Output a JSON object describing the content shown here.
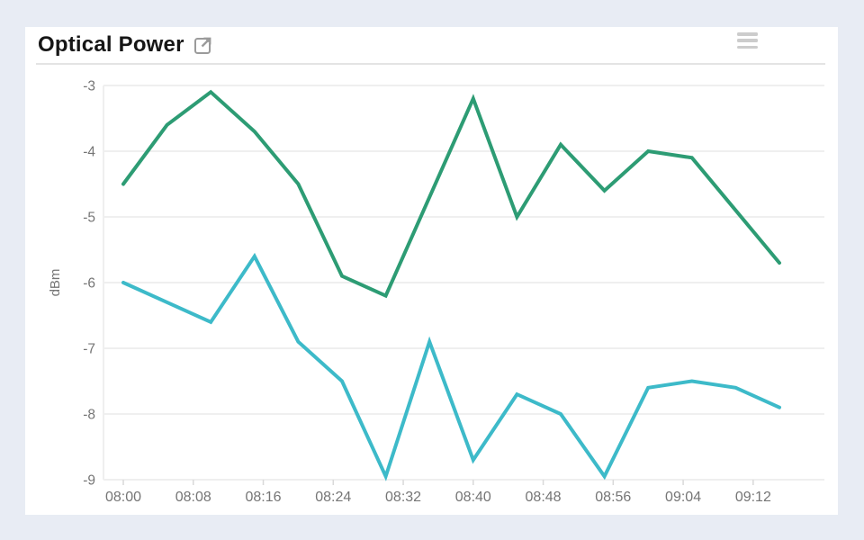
{
  "panel": {
    "title": "Optical Power",
    "external_link_icon": "external-link-icon",
    "menu_icon": "menu-icon"
  },
  "colors": {
    "page_background": "#e8ecf4",
    "card_background": "#ffffff",
    "grid": "#efefef",
    "tick_mark": "#d9d9d9",
    "axis_text": "#757575",
    "icon_gray": "#9b9b9b",
    "series1": "#2d9c74",
    "series2": "#3dbac9"
  },
  "chart_data": {
    "type": "line",
    "title": "Optical Power",
    "xlabel": "",
    "ylabel": "dBm",
    "ylim": [
      -9,
      -3
    ],
    "grid": true,
    "legend_position": "none",
    "x_interval_minutes": 5,
    "x": [
      "08:00",
      "08:05",
      "08:10",
      "08:15",
      "08:20",
      "08:25",
      "08:30",
      "08:35",
      "08:40",
      "08:45",
      "08:50",
      "08:55",
      "09:00",
      "09:05",
      "09:10",
      "09:15"
    ],
    "x_tick_labels": [
      "08:00",
      "08:08",
      "08:16",
      "08:24",
      "08:32",
      "08:40",
      "08:48",
      "08:56",
      "09:04",
      "09:12"
    ],
    "y_ticks": [
      -3,
      -4,
      -5,
      -6,
      -7,
      -8,
      -9
    ],
    "series": [
      {
        "name": "optical-power-series-1",
        "color": "#2d9c74",
        "values": [
          -4.5,
          -3.6,
          -3.1,
          -3.7,
          -4.5,
          -5.9,
          -6.2,
          -4.7,
          -3.2,
          -5.0,
          -3.9,
          -4.6,
          -4.0,
          -4.1,
          -4.9,
          -5.7
        ]
      },
      {
        "name": "optical-power-series-2",
        "color": "#3dbac9",
        "values": [
          -6.0,
          -6.3,
          -6.6,
          -5.6,
          -6.9,
          -7.5,
          -8.95,
          -6.9,
          -8.7,
          -7.7,
          -8.0,
          -8.95,
          -7.6,
          -7.5,
          -7.6,
          -7.9
        ]
      }
    ]
  }
}
